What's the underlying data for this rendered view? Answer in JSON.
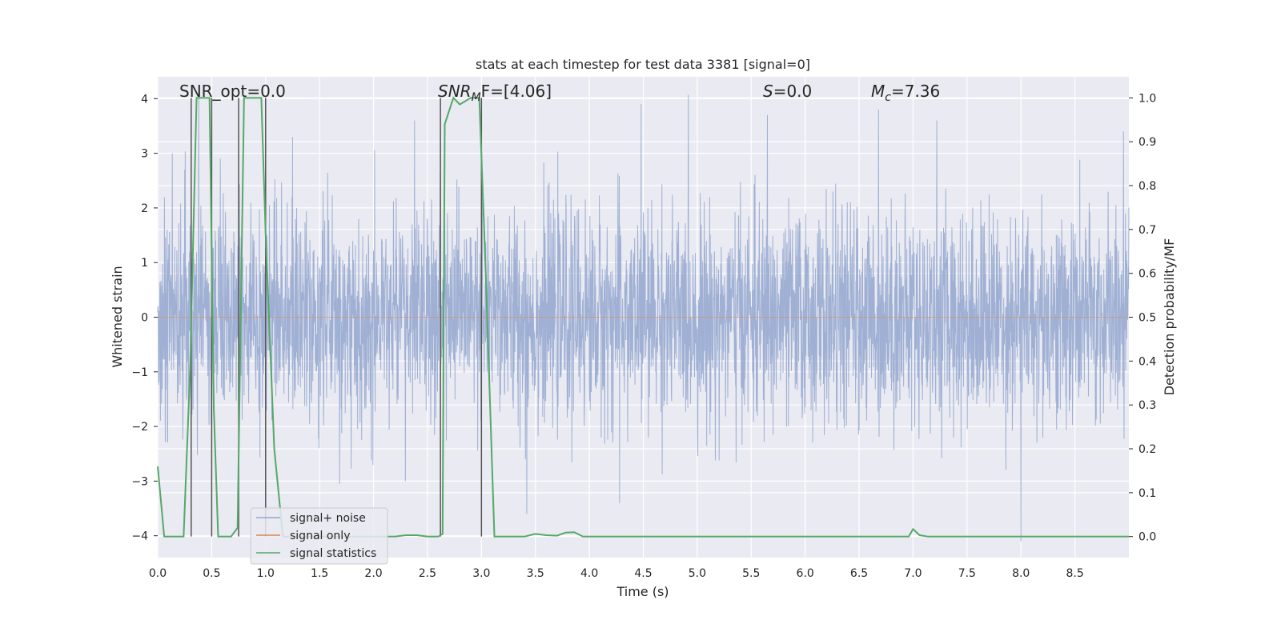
{
  "chart_data": {
    "type": "line",
    "title": "stats at each timestep for test data 3381 [signal=0]",
    "xlabel": "Time (s)",
    "ylabel": "Whitened strain",
    "y2label": "Detection probability/MF",
    "xlim": [
      0.0,
      9.0
    ],
    "ylim": [
      -4.4,
      4.4
    ],
    "y2lim": [
      -0.048,
      1.048
    ],
    "x_ticks": [
      "0.0",
      "0.5",
      "1.0",
      "1.5",
      "2.0",
      "2.5",
      "3.0",
      "3.5",
      "4.0",
      "4.5",
      "5.0",
      "5.5",
      "6.0",
      "6.5",
      "7.0",
      "7.5",
      "8.0",
      "8.5"
    ],
    "y_ticks": [
      "4",
      "3",
      "2",
      "1",
      "0",
      "−1",
      "−2",
      "−3",
      "−4"
    ],
    "y2_ticks": [
      "1.0",
      "0.9",
      "0.8",
      "0.7",
      "0.6",
      "0.5",
      "0.4",
      "0.3",
      "0.2",
      "0.1",
      "0.0"
    ],
    "grid": true,
    "legend_placement": "lower-left",
    "annotations": {
      "snr_opt": "SNR_opt=0.0",
      "snr_mf_italic": "SNR",
      "snr_mf_sub": "M",
      "snr_mf_rest": "F=[4.06]",
      "s_italic": "S",
      "s_rest": "=0.0",
      "mc_italic": "M",
      "mc_sub": "c",
      "mc_rest": "=7.36"
    },
    "series": [
      {
        "name": "signal+ noise",
        "color": "#92a6cf",
        "description": "whitened strain noise, roughly within ±1.6 with spikes to about ±3.5",
        "spikes": [
          {
            "x": 0.25,
            "y": 2.7
          },
          {
            "x": 0.38,
            "y": 4.0
          },
          {
            "x": 0.58,
            "y": 2.9
          },
          {
            "x": 1.25,
            "y": 3.3
          },
          {
            "x": 2.38,
            "y": 3.6
          },
          {
            "x": 3.42,
            "y": -3.6
          },
          {
            "x": 4.28,
            "y": -3.4
          },
          {
            "x": 4.48,
            "y": 3.9
          },
          {
            "x": 5.65,
            "y": 3.7
          },
          {
            "x": 6.68,
            "y": 3.8
          },
          {
            "x": 7.22,
            "y": 3.6
          },
          {
            "x": 8.0,
            "y": 4.0
          },
          {
            "x": 8.0,
            "y": -4.1
          },
          {
            "x": 8.95,
            "y": 3.4
          }
        ]
      },
      {
        "name": "signal only",
        "color": "#dd8452",
        "values": [
          [
            0.0,
            0.0
          ],
          [
            9.0,
            0.0
          ]
        ]
      },
      {
        "name": "signal statistics",
        "color": "#55a868",
        "points": [
          [
            0.0,
            0.16
          ],
          [
            0.06,
            0.0
          ],
          [
            0.12,
            0.0
          ],
          [
            0.24,
            0.0
          ],
          [
            0.3,
            0.38
          ],
          [
            0.36,
            1.0
          ],
          [
            0.48,
            1.0
          ],
          [
            0.52,
            0.29
          ],
          [
            0.56,
            0.0
          ],
          [
            0.68,
            0.0
          ],
          [
            0.74,
            0.02
          ],
          [
            0.8,
            1.0
          ],
          [
            0.96,
            1.0
          ],
          [
            1.0,
            0.69
          ],
          [
            1.08,
            0.2
          ],
          [
            1.16,
            0.0
          ],
          [
            1.3,
            0.0
          ],
          [
            2.2,
            0.0
          ],
          [
            2.3,
            0.003
          ],
          [
            2.4,
            0.003
          ],
          [
            2.5,
            0.0
          ],
          [
            2.6,
            0.0
          ],
          [
            2.64,
            0.006
          ],
          [
            2.66,
            0.94
          ],
          [
            2.74,
            1.0
          ],
          [
            2.8,
            0.985
          ],
          [
            2.9,
            1.0
          ],
          [
            2.98,
            1.0
          ],
          [
            3.04,
            0.6
          ],
          [
            3.12,
            0.0
          ],
          [
            3.4,
            0.0
          ],
          [
            3.5,
            0.006
          ],
          [
            3.6,
            0.003
          ],
          [
            3.7,
            0.002
          ],
          [
            3.78,
            0.009
          ],
          [
            3.86,
            0.01
          ],
          [
            3.94,
            0.0
          ],
          [
            4.2,
            0.0
          ],
          [
            6.9,
            0.0
          ],
          [
            6.96,
            0.0
          ],
          [
            7.0,
            0.017
          ],
          [
            7.06,
            0.003
          ],
          [
            7.14,
            0.0
          ],
          [
            9.0,
            0.0
          ]
        ]
      }
    ],
    "markers": {
      "color": "#555555",
      "x": [
        0.31,
        0.5,
        0.75,
        1.0,
        2.62,
        3.0
      ],
      "note": "vertical lines spanning from y2=0.0 to y2=1.0"
    }
  }
}
